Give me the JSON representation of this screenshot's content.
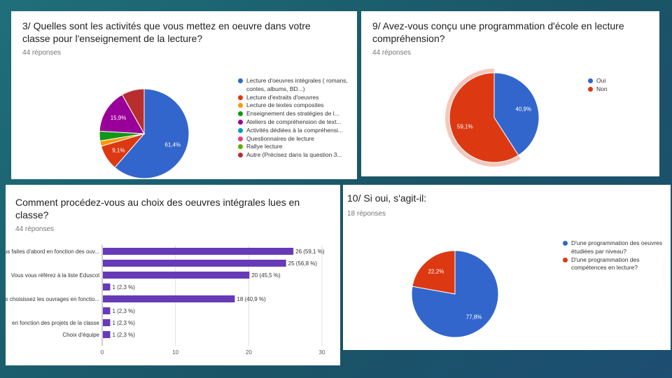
{
  "chart_data": [
    {
      "type": "pie",
      "title": "3/ Quelles sont les activités que vous mettez en oeuvre dans votre classe pour l'enseignement de la lecture?",
      "subtitle": "44 réponses",
      "categories": [
        "Lecture d'oeuvres intégrales ( romans, contes, albums, BD...)",
        "Lecture d'extraits d'oeuvres",
        "Lecture de textes composites",
        "Enseignement des stratégies de l...",
        "Ateliers de compréhension de text...",
        "Activités dédiées à la compréhensi...",
        "Questionnaires de lecture",
        "Rallye lecture",
        "Autre (Précisez dans la question 3..."
      ],
      "values": [
        61.4,
        9.1,
        1.9,
        3.5,
        15.9,
        0,
        0,
        0,
        8.2
      ],
      "slice_labels": [
        "61,4%",
        "9,1%",
        "",
        "",
        "15,9%",
        "",
        "",
        "",
        ""
      ],
      "colors": [
        "#3366cc",
        "#dc3912",
        "#ff9900",
        "#109618",
        "#990099",
        "#0099c6",
        "#dd4477",
        "#66aa00",
        "#b82e2e"
      ],
      "legend": "right"
    },
    {
      "type": "pie",
      "title": "9/ Avez-vous conçu une programmation d'école en lecture compréhension?",
      "subtitle": "44 réponses",
      "categories": [
        "Oui",
        "Non"
      ],
      "values": [
        40.9,
        59.1
      ],
      "slice_labels": [
        "40,9%",
        "59,1%"
      ],
      "colors": [
        "#3366cc",
        "#dc3912"
      ],
      "legend": "right"
    },
    {
      "type": "bar",
      "orientation": "horizontal",
      "title": "Comment procédez-vous au choix des oeuvres intégrales lues en classe?",
      "subtitle": "44 réponses",
      "categories": [
        "Vous faites d'abord en fonction des ouv...",
        "",
        "Vous vous référez à la liste Eduscol",
        "",
        "Vous choisissez les ouvrages en fonctio...",
        "",
        "en fonction des projets de la classe",
        "Choix d'équipe"
      ],
      "values": [
        26,
        25,
        20,
        1,
        18,
        1,
        1,
        1
      ],
      "data_labels": [
        "26 (59,1 %)",
        "25 (56,8 %)",
        "20 (45,5 %)",
        "1 (2,3 %)",
        "18 (40,9 %)",
        "1 (2,3 %)",
        "1 (2,3 %)",
        "1 (2,3 %)"
      ],
      "xticks": [
        "0",
        "10",
        "20",
        "30"
      ],
      "xlim": [
        0,
        30
      ],
      "color": "#673ab7"
    },
    {
      "type": "pie",
      "title": "10/ Si oui, s'agit-il:",
      "subtitle": "18 réponses",
      "categories": [
        "D'une programmation des oeuvres étudiées par niveau?",
        "D'une programmation des compétences en lecture?"
      ],
      "values": [
        77.8,
        22.2
      ],
      "slice_labels": [
        "77,8%",
        "22,2%"
      ],
      "colors": [
        "#3366cc",
        "#dc3912"
      ],
      "legend": "right"
    }
  ]
}
